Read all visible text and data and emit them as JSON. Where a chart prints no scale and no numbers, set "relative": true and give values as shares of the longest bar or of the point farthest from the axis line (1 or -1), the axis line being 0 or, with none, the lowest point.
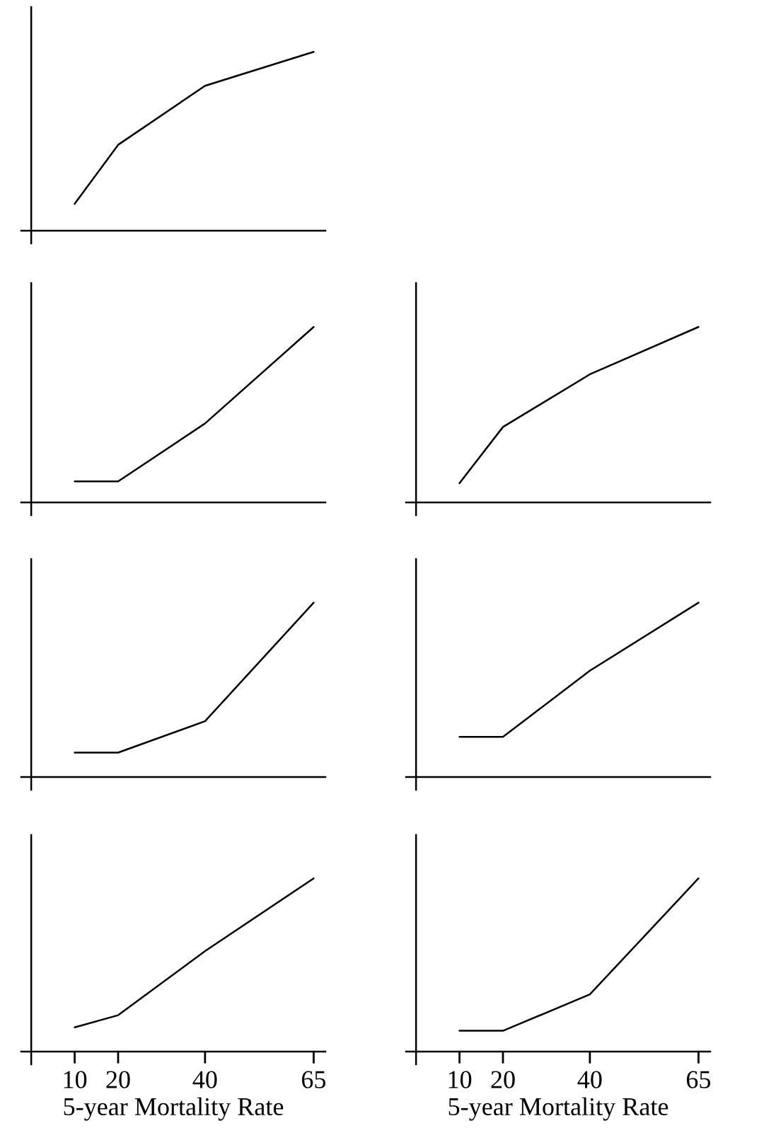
{
  "chart_data": [
    {
      "type": "line",
      "relative": true,
      "x": [
        10,
        20,
        40,
        65
      ],
      "xlim": [
        -2.3,
        67.7
      ],
      "xticks": [
        10,
        20,
        40,
        65
      ],
      "tick_labels": false,
      "series": [
        {
          "color": "#000000",
          "values": [
            0.15,
            0.48,
            0.81,
            1.0
          ]
        }
      ]
    },
    {
      "type": "line",
      "relative": true,
      "x": [
        10,
        20,
        40,
        65
      ],
      "xlim": [
        -2.3,
        67.7
      ],
      "xticks": [
        10,
        20,
        40,
        65
      ],
      "tick_labels": false,
      "series": [
        {
          "color": "#000000",
          "values": [
            0.12,
            0.12,
            0.45,
            1.0
          ]
        }
      ]
    },
    {
      "type": "line",
      "relative": true,
      "x": [
        10,
        20,
        40,
        65
      ],
      "xlim": [
        -2.3,
        67.7
      ],
      "xticks": [
        10,
        20,
        40,
        65
      ],
      "tick_labels": false,
      "series": [
        {
          "color": "#000000",
          "values": [
            0.11,
            0.43,
            0.73,
            1.0
          ]
        }
      ]
    },
    {
      "type": "line",
      "relative": true,
      "x": [
        10,
        20,
        40,
        65
      ],
      "xlim": [
        -2.3,
        67.7
      ],
      "xticks": [
        10,
        20,
        40,
        65
      ],
      "tick_labels": false,
      "series": [
        {
          "color": "#000000",
          "values": [
            0.14,
            0.14,
            0.32,
            1.0
          ]
        }
      ]
    },
    {
      "type": "line",
      "relative": true,
      "x": [
        10,
        20,
        40,
        65
      ],
      "xlim": [
        -2.3,
        67.7
      ],
      "xticks": [
        10,
        20,
        40,
        65
      ],
      "tick_labels": false,
      "series": [
        {
          "color": "#000000",
          "values": [
            0.23,
            0.23,
            0.61,
            1.0
          ]
        }
      ]
    },
    {
      "type": "line",
      "relative": true,
      "x": [
        10,
        20,
        40,
        65
      ],
      "xlim": [
        -2.3,
        67.7
      ],
      "xticks": [
        10,
        20,
        40,
        65
      ],
      "tick_labels": "x",
      "xlabel": "5-year Mortality Rate",
      "series": [
        {
          "color": "#000000",
          "values": [
            0.14,
            0.21,
            0.58,
            1.0
          ]
        }
      ]
    },
    {
      "type": "line",
      "relative": true,
      "x": [
        10,
        20,
        40,
        65
      ],
      "xlim": [
        -2.3,
        67.7
      ],
      "xticks": [
        10,
        20,
        40,
        65
      ],
      "tick_labels": "x",
      "xlabel": "5-year Mortality Rate",
      "series": [
        {
          "color": "#000000",
          "values": [
            0.12,
            0.12,
            0.33,
            1.0
          ]
        }
      ]
    }
  ]
}
